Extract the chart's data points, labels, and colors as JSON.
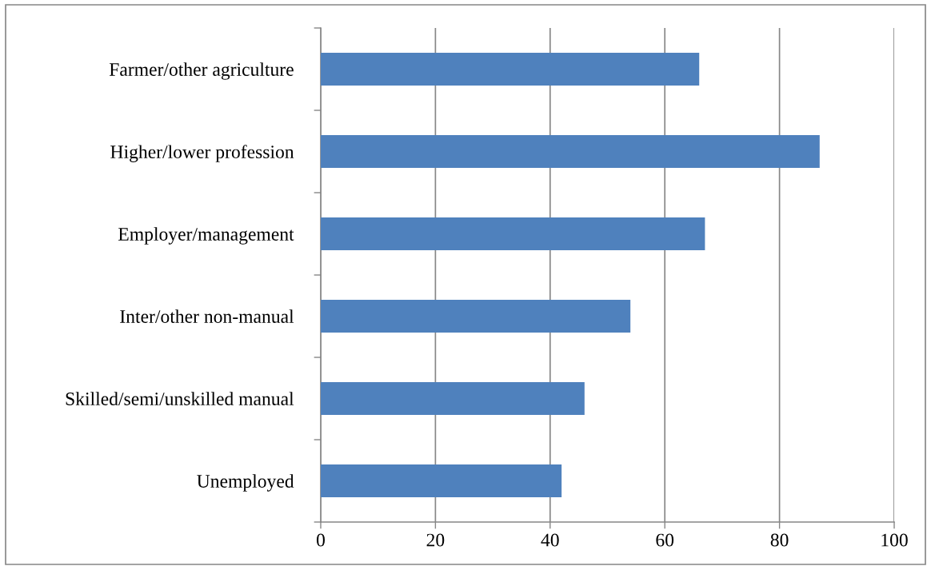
{
  "chart_data": {
    "type": "bar",
    "orientation": "horizontal",
    "categories": [
      "Farmer/other agriculture",
      "Higher/lower profession",
      "Employer/management",
      "Inter/other non-manual",
      "Skilled/semi/unskilled manual",
      "Unemployed"
    ],
    "values": [
      66,
      87,
      67,
      54,
      46,
      42
    ],
    "color": "#4f81bd",
    "xlim": [
      0,
      100
    ],
    "xticks": [
      0,
      20,
      40,
      60,
      80,
      100
    ],
    "grid": "x",
    "legend": false
  }
}
